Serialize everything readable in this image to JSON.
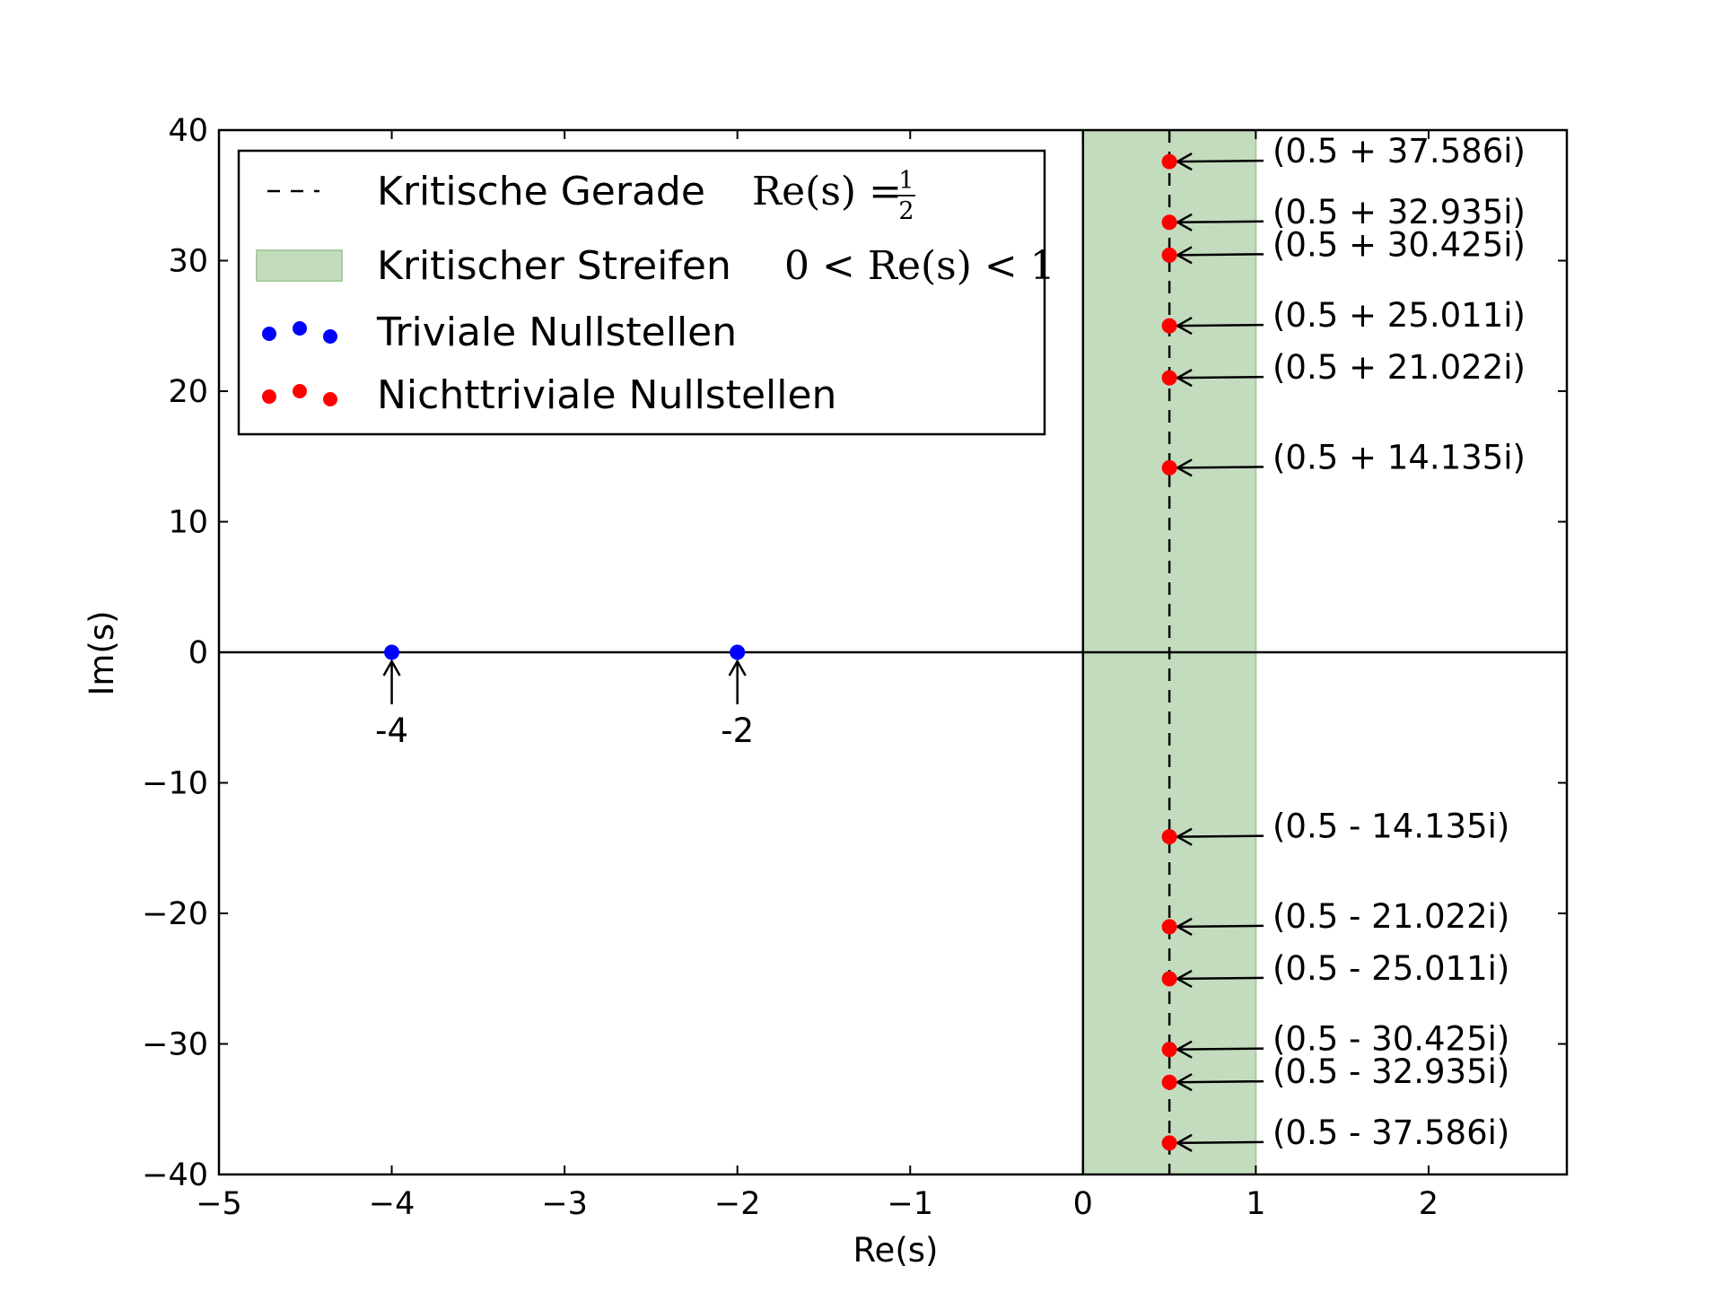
{
  "chart_data": {
    "type": "scatter",
    "xlabel": "Re(s)",
    "ylabel": "Im(s)",
    "xlim": [
      -5,
      2.8
    ],
    "ylim": [
      -40,
      40
    ],
    "xticks": [
      -5,
      -4,
      -3,
      -2,
      -1,
      0,
      1,
      2
    ],
    "xtick_labels": [
      "−5",
      "−4",
      "−3",
      "−2",
      "−1",
      "0",
      "1",
      "2"
    ],
    "yticks": [
      40,
      30,
      20,
      10,
      0,
      -10,
      -20,
      -30,
      -40
    ],
    "ytick_labels": [
      "40",
      "30",
      "20",
      "10",
      "0",
      "−10",
      "−20",
      "−30",
      "−40"
    ],
    "grid": false,
    "critical_line": {
      "x": 0.5,
      "style": "dashed",
      "color": "#000000"
    },
    "critical_strip": {
      "x0": 0,
      "x1": 1,
      "color": "#c4dcbe",
      "edge_color": "#a9cc9f"
    },
    "series": [
      {
        "name": "Triviale Nullstellen",
        "color": "#0000ff",
        "points": [
          {
            "x": -4,
            "y": 0,
            "label": "-4"
          },
          {
            "x": -2,
            "y": 0,
            "label": "-2"
          }
        ]
      },
      {
        "name": "Nichttriviale Nullstellen",
        "color": "#ff0000",
        "points": [
          {
            "x": 0.5,
            "y": 37.586,
            "label": "(0.5 + 37.586i)"
          },
          {
            "x": 0.5,
            "y": 32.935,
            "label": "(0.5 + 32.935i)"
          },
          {
            "x": 0.5,
            "y": 30.425,
            "label": "(0.5 + 30.425i)"
          },
          {
            "x": 0.5,
            "y": 25.011,
            "label": "(0.5 + 25.011i)"
          },
          {
            "x": 0.5,
            "y": 21.022,
            "label": "(0.5 + 21.022i)"
          },
          {
            "x": 0.5,
            "y": 14.135,
            "label": "(0.5 + 14.135i)"
          },
          {
            "x": 0.5,
            "y": -14.135,
            "label": "(0.5 - 14.135i)"
          },
          {
            "x": 0.5,
            "y": -21.022,
            "label": "(0.5 - 21.022i)"
          },
          {
            "x": 0.5,
            "y": -25.011,
            "label": "(0.5 - 25.011i)"
          },
          {
            "x": 0.5,
            "y": -30.425,
            "label": "(0.5 - 30.425i)"
          },
          {
            "x": 0.5,
            "y": -32.935,
            "label": "(0.5 - 32.935i)"
          },
          {
            "x": 0.5,
            "y": -37.586,
            "label": "(0.5 - 37.586i)"
          }
        ]
      }
    ],
    "legend": {
      "position": "upper-left",
      "entries": [
        {
          "text": "Kritische Gerade",
          "math": "Re(s) = 1/2",
          "marker": "dashed-line"
        },
        {
          "text": "Kritischer Streifen",
          "math": "0 < Re(s) < 1",
          "marker": "patch"
        },
        {
          "text": "Triviale Nullstellen",
          "marker": "blue-dots"
        },
        {
          "text": "Nichttriviale Nullstellen",
          "marker": "red-dots"
        }
      ]
    }
  }
}
